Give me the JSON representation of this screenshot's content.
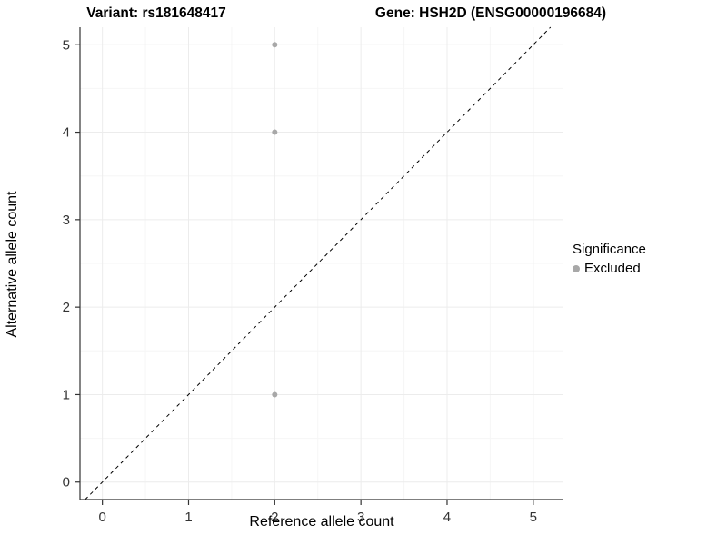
{
  "titles": {
    "left": "Variant: rs181648417",
    "right": "Gene: HSH2D (ENSG00000196684)"
  },
  "chart_data": {
    "type": "scatter",
    "title_left": "Variant: rs181648417",
    "title_right": "Gene: HSH2D (ENSG00000196684)",
    "xlabel": "Reference allele count",
    "ylabel": "Alternative allele count",
    "xlim": [
      -0.26,
      5.35
    ],
    "ylim": [
      -0.2,
      5.2
    ],
    "xticks": [
      0,
      1,
      2,
      3,
      4,
      5
    ],
    "yticks": [
      0,
      1,
      2,
      3,
      4,
      5
    ],
    "grid": true,
    "series": [
      {
        "name": "Excluded",
        "color": "#a8a8a8",
        "points": [
          {
            "x": 2,
            "y": 1
          },
          {
            "x": 2,
            "y": 4
          },
          {
            "x": 2,
            "y": 5
          }
        ]
      }
    ],
    "reference_line": {
      "type": "identity y=x",
      "style": "dashed",
      "color": "#000000"
    },
    "legend": {
      "title": "Significance",
      "position": "right",
      "items": [
        {
          "label": "Excluded",
          "color": "#a8a8a8"
        }
      ]
    },
    "colors": {
      "axis": "#333333",
      "major_grid": "#ececec",
      "minor_grid": "#f6f6f6",
      "background": "#ffffff"
    }
  }
}
